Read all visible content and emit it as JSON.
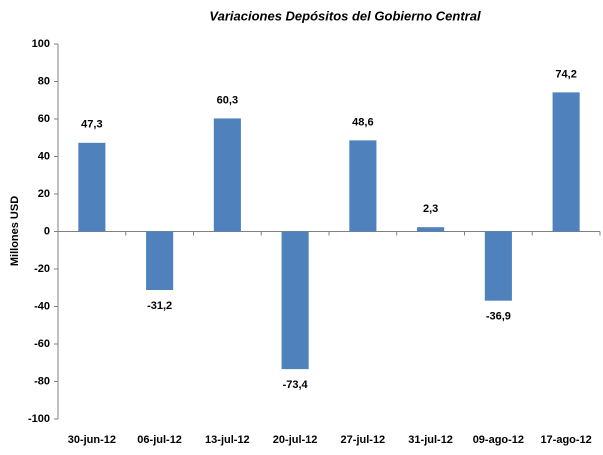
{
  "chart_data": {
    "type": "bar",
    "title": "Variaciones Depósitos del Gobierno Central",
    "y_label": "Millones USD",
    "categories": [
      "30-jun-12",
      "06-jul-12",
      "13-jul-12",
      "20-jul-12",
      "27-jul-12",
      "31-jul-12",
      "09-ago-12",
      "17-ago-12"
    ],
    "values": [
      47.3,
      -31.2,
      60.3,
      -73.4,
      48.6,
      2.3,
      -36.9,
      74.2
    ],
    "value_labels": [
      "47,3",
      "-31,2",
      "60,3",
      "-73,4",
      "48,6",
      "2,3",
      "-36,9",
      "74,2"
    ],
    "color": "#4f81bd",
    "ylim": [
      -100,
      100
    ],
    "yticks": [
      -100,
      -80,
      -60,
      -40,
      -20,
      0,
      20,
      40,
      60,
      80,
      100
    ],
    "grid": false
  }
}
